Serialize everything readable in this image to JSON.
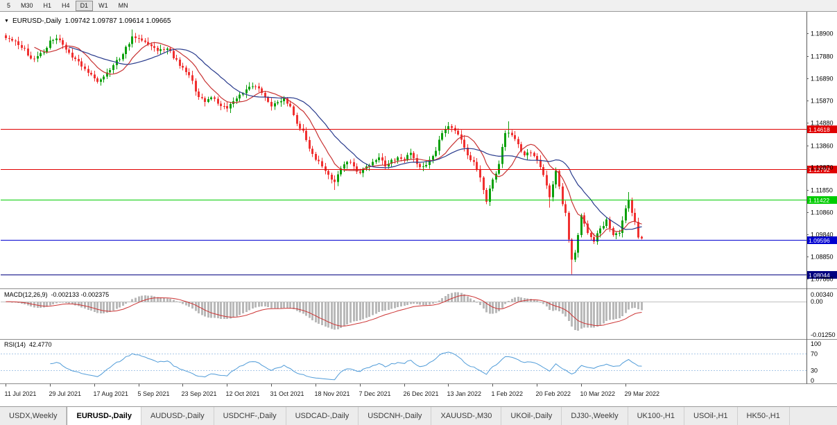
{
  "toolbar": {
    "timeframes": [
      {
        "label": "5",
        "active": false
      },
      {
        "label": "M30",
        "active": false
      },
      {
        "label": "H1",
        "active": false
      },
      {
        "label": "H4",
        "active": false
      },
      {
        "label": "D1",
        "active": true
      },
      {
        "label": "W1",
        "active": false
      },
      {
        "label": "MN",
        "active": false
      }
    ]
  },
  "main_panel": {
    "dropdown_icon": "▼",
    "symbol": "EURUSD-,Daily",
    "ohlc_text": "1.09742 1.09787 1.09614 1.09665"
  },
  "macd_panel": {
    "title": "MACD(12,26,9)",
    "values": "-0.002133 -0.002375"
  },
  "rsi_panel": {
    "title": "RSI(14)",
    "value": "42.4770"
  },
  "tabs": {
    "active_index": 1,
    "items": [
      {
        "label": "USDX,Weekly"
      },
      {
        "label": "EURUSD-,Daily"
      },
      {
        "label": "AUDUSD-,Daily"
      },
      {
        "label": "USDCHF-,Daily"
      },
      {
        "label": "USDCAD-,Daily"
      },
      {
        "label": "USDCNH-,Daily"
      },
      {
        "label": "XAUUSD-,M30"
      },
      {
        "label": "UKOil-,Daily"
      },
      {
        "label": "DJ30-,Weekly"
      },
      {
        "label": "UK100-,H1"
      },
      {
        "label": "USOil-,H1"
      },
      {
        "label": "HK50-,H1"
      }
    ]
  },
  "chart_data": {
    "type": "candlestick",
    "symbol": "EURUSD-",
    "timeframe": "Daily",
    "last_candle_ohlc": [
      1.09742,
      1.09787,
      1.09614,
      1.09665
    ],
    "y_range": [
      1.0745,
      1.1985
    ],
    "num_candles": 202,
    "label_interval": 14,
    "x_labels": [
      "11 Jul 2021",
      "29 Jul 2021",
      "17 Aug 2021",
      "5 Sep 2021",
      "23 Sep 2021",
      "12 Oct 2021",
      "31 Oct 2021",
      "18 Nov 2021",
      "7 Dec 2021",
      "26 Dec 2021",
      "13 Jan 2022",
      "1 Feb 2022",
      "20 Feb 2022",
      "10 Mar 2022",
      "29 Mar 2022"
    ],
    "price_ticks": [
      {
        "v": 1.189,
        "t": "1.18900"
      },
      {
        "v": 1.1788,
        "t": "1.17880"
      },
      {
        "v": 1.1689,
        "t": "1.16890"
      },
      {
        "v": 1.1587,
        "t": "1.15870"
      },
      {
        "v": 1.1488,
        "t": "1.14880"
      },
      {
        "v": 1.1386,
        "t": "1.13860"
      },
      {
        "v": 1.1287,
        "t": "1.12870"
      },
      {
        "v": 1.1185,
        "t": "1.11850"
      },
      {
        "v": 1.1086,
        "t": "1.10860"
      },
      {
        "v": 1.0984,
        "t": "1.09840"
      },
      {
        "v": 1.0885,
        "t": "1.08850"
      },
      {
        "v": 1.0786,
        "t": "1.07860"
      }
    ],
    "hlines": [
      {
        "price": 1.14618,
        "label": "1.14618",
        "color": "#E00000"
      },
      {
        "price": 1.12792,
        "label": "1.12792",
        "color": "#E00000"
      },
      {
        "price": 1.11422,
        "label": "1.11422",
        "color": "#00CC00"
      },
      {
        "price": 1.09596,
        "label": "1.09596",
        "color": "#0000D0"
      },
      {
        "price": 1.08044,
        "label": "1.08044",
        "color": "#000080"
      }
    ],
    "close_waypoints": [
      [
        0,
        1.187
      ],
      [
        2,
        1.1858
      ],
      [
        4,
        1.1838
      ],
      [
        6,
        1.1822
      ],
      [
        8,
        1.1778
      ],
      [
        10,
        1.1788
      ],
      [
        12,
        1.1806
      ],
      [
        14,
        1.1858
      ],
      [
        16,
        1.1868
      ],
      [
        18,
        1.184
      ],
      [
        21,
        1.1782
      ],
      [
        24,
        1.1742
      ],
      [
        27,
        1.1705
      ],
      [
        29,
        1.1672
      ],
      [
        31,
        1.1696
      ],
      [
        34,
        1.1748
      ],
      [
        37,
        1.1798
      ],
      [
        40,
        1.1878
      ],
      [
        42,
        1.1868
      ],
      [
        45,
        1.1842
      ],
      [
        48,
        1.1812
      ],
      [
        51,
        1.1822
      ],
      [
        54,
        1.1772
      ],
      [
        56,
        1.1736
      ],
      [
        58,
        1.1702
      ],
      [
        61,
        1.1604
      ],
      [
        63,
        1.1582
      ],
      [
        65,
        1.1602
      ],
      [
        68,
        1.1564
      ],
      [
        70,
        1.1552
      ],
      [
        73,
        1.1598
      ],
      [
        76,
        1.1638
      ],
      [
        79,
        1.1652
      ],
      [
        82,
        1.1604
      ],
      [
        84,
        1.1562
      ],
      [
        86,
        1.158
      ],
      [
        88,
        1.1598
      ],
      [
        90,
        1.1562
      ],
      [
        92,
        1.1484
      ],
      [
        94,
        1.1452
      ],
      [
        96,
        1.1372
      ],
      [
        98,
        1.1322
      ],
      [
        100,
        1.1292
      ],
      [
        102,
        1.1254
      ],
      [
        104,
        1.1222
      ],
      [
        106,
        1.1282
      ],
      [
        108,
        1.1312
      ],
      [
        110,
        1.1292
      ],
      [
        112,
        1.1262
      ],
      [
        114,
        1.1292
      ],
      [
        116,
        1.1312
      ],
      [
        118,
        1.1332
      ],
      [
        120,
        1.1292
      ],
      [
        122,
        1.1322
      ],
      [
        124,
        1.1332
      ],
      [
        126,
        1.1322
      ],
      [
        128,
        1.1352
      ],
      [
        130,
        1.1302
      ],
      [
        132,
        1.1292
      ],
      [
        134,
        1.1322
      ],
      [
        136,
        1.1362
      ],
      [
        138,
        1.1442
      ],
      [
        140,
        1.1472
      ],
      [
        142,
        1.1452
      ],
      [
        144,
        1.1412
      ],
      [
        146,
        1.1342
      ],
      [
        148,
        1.1312
      ],
      [
        150,
        1.1242
      ],
      [
        152,
        1.1132
      ],
      [
        154,
        1.1232
      ],
      [
        156,
        1.1302
      ],
      [
        158,
        1.1442
      ],
      [
        160,
        1.1432
      ],
      [
        162,
        1.1392
      ],
      [
        164,
        1.1342
      ],
      [
        166,
        1.1352
      ],
      [
        168,
        1.1322
      ],
      [
        170,
        1.1252
      ],
      [
        172,
        1.1152
      ],
      [
        174,
        1.1272
      ],
      [
        176,
        1.1122
      ],
      [
        177,
        1.1082
      ],
      [
        178,
        1.0962
      ],
      [
        179,
        1.0872
      ],
      [
        180,
        1.0902
      ],
      [
        181,
        1.0982
      ],
      [
        182,
        1.1072
      ],
      [
        184,
        1.0992
      ],
      [
        186,
        1.0952
      ],
      [
        188,
        1.1012
      ],
      [
        190,
        1.1052
      ],
      [
        192,
        1.0982
      ],
      [
        194,
        1.0992
      ],
      [
        196,
        1.1102
      ],
      [
        197,
        1.1142
      ],
      [
        198,
        1.1082
      ],
      [
        199,
        1.1042
      ],
      [
        200,
        1.0972
      ],
      [
        201,
        1.09665
      ]
    ],
    "wick_extremes": [
      [
        40,
        "high",
        1.1909
      ],
      [
        104,
        "low",
        1.1186
      ],
      [
        152,
        "low",
        1.1121
      ],
      [
        159,
        "high",
        1.1495
      ],
      [
        172,
        "low",
        1.1106
      ],
      [
        179,
        "low",
        1.0806
      ],
      [
        197,
        "high",
        1.1176
      ]
    ],
    "noise": 0.001,
    "wick": 0.0016,
    "seed": 11,
    "candle_up_color": "#0AA00A",
    "candle_down_color": "#F03030",
    "overlays": [
      {
        "name": "ma-fast",
        "type": "sma",
        "period": 10,
        "color": "#C83232"
      },
      {
        "name": "ma-slow",
        "type": "sma",
        "period": 21,
        "color": "#283A8C"
      }
    ],
    "indicators": [
      {
        "name": "macd",
        "params": [
          12,
          26,
          9
        ],
        "current_values": [
          -0.002133,
          -0.002375
        ],
        "y_range": [
          -0.0125,
          0.0034
        ],
        "ticks": [
          {
            "v": 0.0034,
            "t": "0.00340"
          },
          {
            "v": 0,
            "t": "0.00"
          },
          {
            "v": -0.0125,
            "t": "-0.01250"
          }
        ],
        "hist_color": "#B9B9B9",
        "signal_color": "#CC3333",
        "zero_color": "#BFBFBF"
      },
      {
        "name": "rsi",
        "params": [
          14
        ],
        "current_value": 42.477,
        "y_range": [
          0,
          100
        ],
        "ticks": [
          {
            "v": 100,
            "t": "100"
          },
          {
            "v": 70,
            "t": "70"
          },
          {
            "v": 30,
            "t": "30"
          },
          {
            "v": 0,
            "t": "0"
          }
        ],
        "levels": [
          70,
          30
        ],
        "line_color": "#4F9BD8",
        "level_color": "#A9C7E7"
      }
    ]
  }
}
